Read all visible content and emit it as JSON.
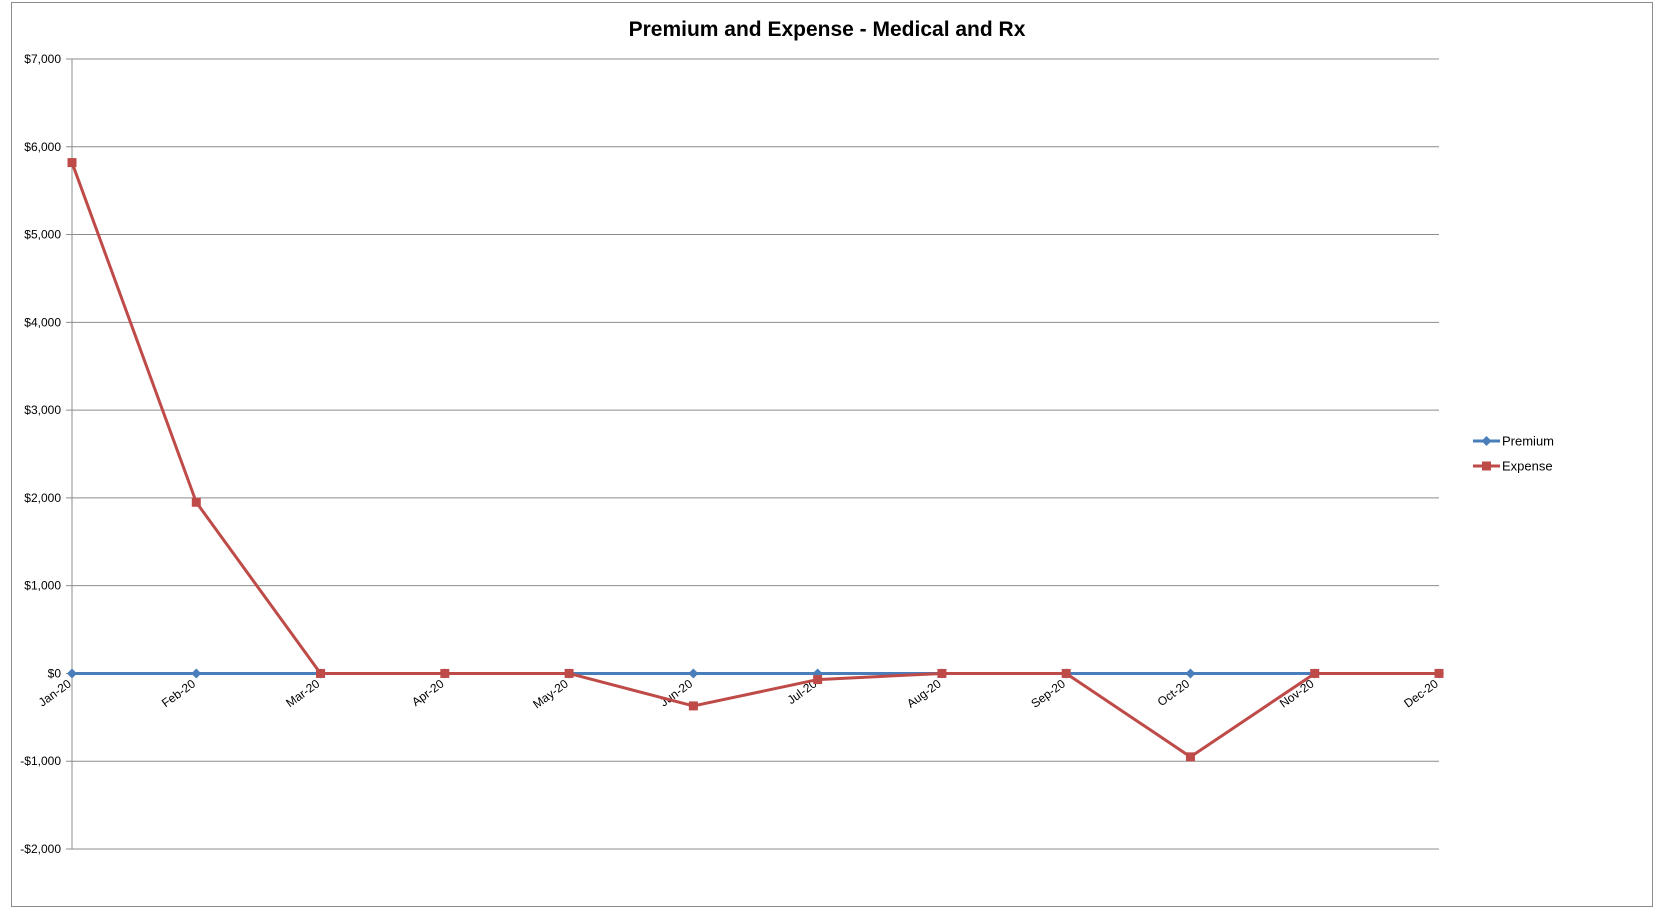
{
  "chart_data": {
    "type": "line",
    "title": "Premium and Expense - Medical and Rx",
    "categories": [
      "Jan-20",
      "Feb-20",
      "Mar-20",
      "Apr-20",
      "May-20",
      "Jun-20",
      "Jul-20",
      "Aug-20",
      "Sep-20",
      "Oct-20",
      "Nov-20",
      "Dec-20"
    ],
    "series": [
      {
        "name": "Premium",
        "color": "#4a7ebb",
        "marker": "diamond",
        "values": [
          0,
          0,
          0,
          0,
          0,
          0,
          0,
          0,
          0,
          0,
          0,
          0
        ]
      },
      {
        "name": "Expense",
        "color": "#be4b48",
        "marker": "square",
        "values": [
          5820,
          1950,
          0,
          0,
          0,
          -370,
          -70,
          0,
          0,
          -950,
          0,
          0
        ]
      }
    ],
    "ylim": [
      -2000,
      7000
    ],
    "ytick_values": [
      7000,
      6000,
      5000,
      4000,
      3000,
      2000,
      1000,
      0,
      -1000,
      -2000
    ],
    "ytick_labels": [
      "$7,000",
      "$6,000",
      "$5,000",
      "$4,000",
      "$3,000",
      "$2,000",
      "$1,000",
      "$0",
      "-$1,000",
      "-$2,000"
    ],
    "grid": true,
    "legend_position": "right"
  }
}
